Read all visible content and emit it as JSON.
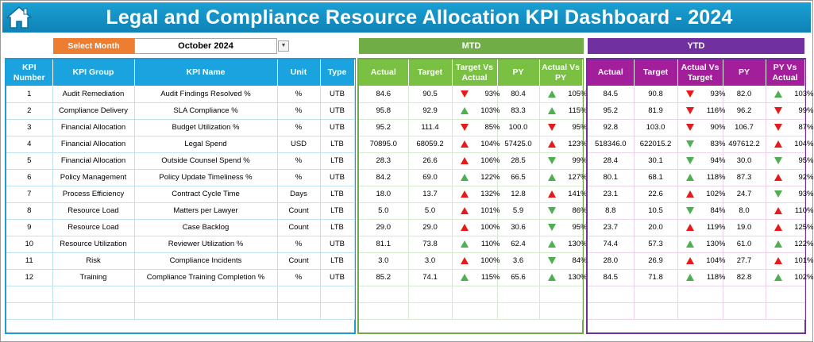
{
  "header": {
    "title": "Legal and Compliance Resource Allocation KPI Dashboard - 2024",
    "home_icon": "home-icon",
    "color": "#1aa0d3"
  },
  "filter": {
    "label": "Select Month",
    "value": "October 2024",
    "dropdown_icon": "chevron-down-icon"
  },
  "sections": {
    "mtd": "MTD",
    "ytd": "YTD"
  },
  "columns": {
    "left": [
      "KPI Number",
      "KPI Group",
      "KPI Name",
      "Unit",
      "Type"
    ],
    "mtd": [
      "Actual",
      "Target",
      "Target Vs Actual",
      "PY",
      "Actual Vs PY"
    ],
    "ytd": [
      "Actual",
      "Target",
      "Actual Vs Target",
      "PY",
      "PY Vs Actual"
    ]
  },
  "colors": {
    "up_good": "#4caf50",
    "bad": "#e51b1b",
    "mtd": "#70ad47",
    "ytd": "#7030a0",
    "month_label": "#ed7d31"
  },
  "rows": [
    {
      "num": "1",
      "group": "Audit Remediation",
      "name": "Audit Findings Resolved %",
      "unit": "%",
      "type": "UTB",
      "mtd": {
        "actual": "84.6",
        "target": "90.5",
        "tva": "93%",
        "tva_icon": "dn-r",
        "py": "80.4",
        "avp": "105%",
        "avp_icon": "up-g"
      },
      "ytd": {
        "actual": "84.5",
        "target": "90.8",
        "avt": "93%",
        "avt_icon": "dn-r",
        "py": "82.0",
        "pva": "103%",
        "pva_icon": "up-g"
      }
    },
    {
      "num": "2",
      "group": "Compliance Delivery",
      "name": "SLA Compliance %",
      "unit": "%",
      "type": "UTB",
      "mtd": {
        "actual": "95.8",
        "target": "92.9",
        "tva": "103%",
        "tva_icon": "up-g",
        "py": "83.3",
        "avp": "115%",
        "avp_icon": "up-g"
      },
      "ytd": {
        "actual": "95.2",
        "target": "81.9",
        "avt": "116%",
        "avt_icon": "dn-r",
        "py": "96.2",
        "pva": "99%",
        "pva_icon": "dn-r"
      }
    },
    {
      "num": "3",
      "group": "Financial Allocation",
      "name": "Budget Utilization %",
      "unit": "%",
      "type": "UTB",
      "mtd": {
        "actual": "95.2",
        "target": "111.4",
        "tva": "85%",
        "tva_icon": "dn-r",
        "py": "100.0",
        "avp": "95%",
        "avp_icon": "dn-r"
      },
      "ytd": {
        "actual": "92.8",
        "target": "103.0",
        "avt": "90%",
        "avt_icon": "dn-r",
        "py": "106.7",
        "pva": "87%",
        "pva_icon": "dn-r"
      }
    },
    {
      "num": "4",
      "group": "Financial Allocation",
      "name": "Legal Spend",
      "unit": "USD",
      "type": "LTB",
      "mtd": {
        "actual": "70895.0",
        "target": "68059.2",
        "tva": "104%",
        "tva_icon": "up-r",
        "py": "57425.0",
        "avp": "123%",
        "avp_icon": "up-r"
      },
      "ytd": {
        "actual": "518346.0",
        "target": "622015.2",
        "avt": "83%",
        "avt_icon": "dn-g",
        "py": "497612.2",
        "pva": "104%",
        "pva_icon": "up-r"
      }
    },
    {
      "num": "5",
      "group": "Financial Allocation",
      "name": "Outside Counsel Spend %",
      "unit": "%",
      "type": "LTB",
      "mtd": {
        "actual": "28.3",
        "target": "26.6",
        "tva": "106%",
        "tva_icon": "up-r",
        "py": "28.5",
        "avp": "99%",
        "avp_icon": "dn-g"
      },
      "ytd": {
        "actual": "28.4",
        "target": "30.1",
        "avt": "94%",
        "avt_icon": "dn-g",
        "py": "30.0",
        "pva": "95%",
        "pva_icon": "dn-g"
      }
    },
    {
      "num": "6",
      "group": "Policy Management",
      "name": "Policy Update Timeliness %",
      "unit": "%",
      "type": "UTB",
      "mtd": {
        "actual": "84.2",
        "target": "69.0",
        "tva": "122%",
        "tva_icon": "up-g",
        "py": "66.5",
        "avp": "127%",
        "avp_icon": "up-g"
      },
      "ytd": {
        "actual": "80.1",
        "target": "68.1",
        "avt": "118%",
        "avt_icon": "up-g",
        "py": "87.3",
        "pva": "92%",
        "pva_icon": "up-r"
      }
    },
    {
      "num": "7",
      "group": "Process Efficiency",
      "name": "Contract Cycle Time",
      "unit": "Days",
      "type": "LTB",
      "mtd": {
        "actual": "18.0",
        "target": "13.7",
        "tva": "132%",
        "tva_icon": "up-r",
        "py": "12.8",
        "avp": "141%",
        "avp_icon": "up-r"
      },
      "ytd": {
        "actual": "23.1",
        "target": "22.6",
        "avt": "102%",
        "avt_icon": "up-r",
        "py": "24.7",
        "pva": "93%",
        "pva_icon": "dn-g"
      }
    },
    {
      "num": "8",
      "group": "Resource Load",
      "name": "Matters per Lawyer",
      "unit": "Count",
      "type": "LTB",
      "mtd": {
        "actual": "5.0",
        "target": "5.0",
        "tva": "101%",
        "tva_icon": "up-r",
        "py": "5.9",
        "avp": "86%",
        "avp_icon": "dn-g"
      },
      "ytd": {
        "actual": "8.8",
        "target": "10.5",
        "avt": "84%",
        "avt_icon": "dn-g",
        "py": "8.0",
        "pva": "110%",
        "pva_icon": "up-r"
      }
    },
    {
      "num": "9",
      "group": "Resource Load",
      "name": "Case Backlog",
      "unit": "Count",
      "type": "LTB",
      "mtd": {
        "actual": "29.0",
        "target": "29.0",
        "tva": "100%",
        "tva_icon": "up-r",
        "py": "30.6",
        "avp": "95%",
        "avp_icon": "dn-g"
      },
      "ytd": {
        "actual": "23.7",
        "target": "20.0",
        "avt": "119%",
        "avt_icon": "up-r",
        "py": "19.0",
        "pva": "125%",
        "pva_icon": "up-r"
      }
    },
    {
      "num": "10",
      "group": "Resource Utilization",
      "name": "Reviewer Utilization %",
      "unit": "%",
      "type": "UTB",
      "mtd": {
        "actual": "81.1",
        "target": "73.8",
        "tva": "110%",
        "tva_icon": "up-g",
        "py": "62.4",
        "avp": "130%",
        "avp_icon": "up-g"
      },
      "ytd": {
        "actual": "74.4",
        "target": "57.3",
        "avt": "130%",
        "avt_icon": "up-g",
        "py": "61.0",
        "pva": "122%",
        "pva_icon": "up-g"
      }
    },
    {
      "num": "11",
      "group": "Risk",
      "name": "Compliance Incidents",
      "unit": "Count",
      "type": "LTB",
      "mtd": {
        "actual": "3.0",
        "target": "3.0",
        "tva": "100%",
        "tva_icon": "up-r",
        "py": "3.6",
        "avp": "84%",
        "avp_icon": "dn-g"
      },
      "ytd": {
        "actual": "28.0",
        "target": "26.9",
        "avt": "104%",
        "avt_icon": "up-r",
        "py": "27.7",
        "pva": "101%",
        "pva_icon": "up-r"
      }
    },
    {
      "num": "12",
      "group": "Training",
      "name": "Compliance Training Completion %",
      "unit": "%",
      "type": "UTB",
      "mtd": {
        "actual": "85.2",
        "target": "74.1",
        "tva": "115%",
        "tva_icon": "up-g",
        "py": "65.6",
        "avp": "130%",
        "avp_icon": "up-g"
      },
      "ytd": {
        "actual": "84.5",
        "target": "71.8",
        "avt": "118%",
        "avt_icon": "up-g",
        "py": "82.8",
        "pva": "102%",
        "pva_icon": "up-g"
      }
    }
  ]
}
